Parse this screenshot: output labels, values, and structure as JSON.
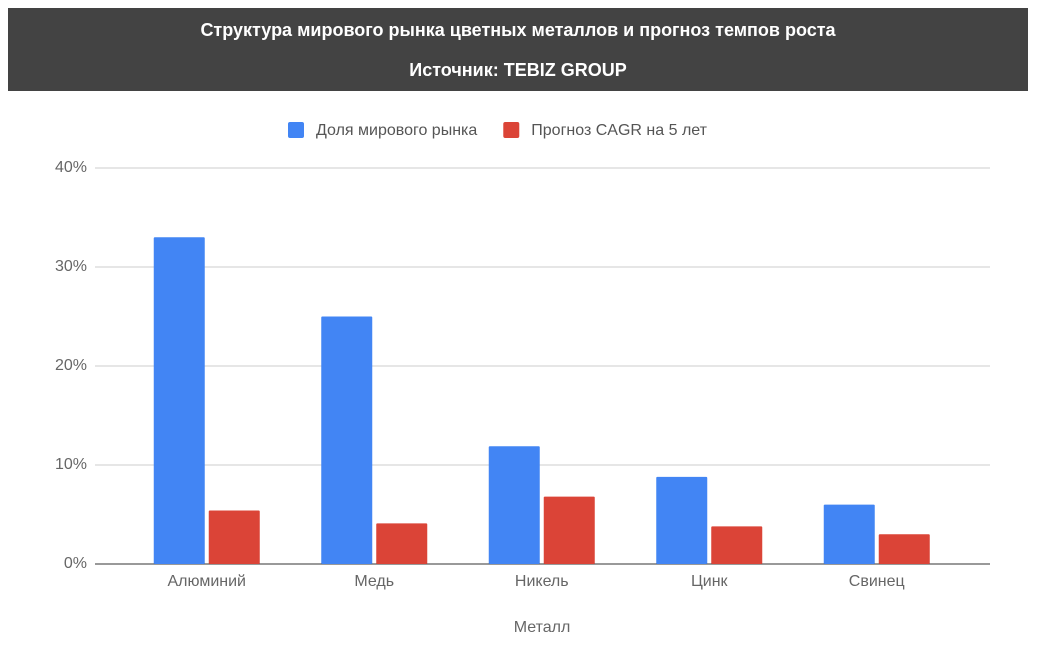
{
  "chart_data": {
    "type": "bar",
    "title": "Структура мирового рынка цветных металлов и прогноз темпов роста",
    "subtitle": "Источник: TEBIZ GROUP",
    "x_label": "Металл",
    "categories": [
      "Алюминий",
      "Медь",
      "Никель",
      "Цинк",
      "Свинец"
    ],
    "series": [
      {
        "name": "Доля мирового рынка",
        "color": "#4285f4",
        "values": [
          33,
          25,
          11.9,
          8.8,
          6.0
        ]
      },
      {
        "name": "Прогноз CAGR на 5 лет",
        "color": "#db4437",
        "values": [
          5.4,
          4.1,
          6.8,
          3.8,
          3.0
        ]
      }
    ],
    "ylim": [
      0,
      40
    ],
    "yticks": [
      {
        "value": 0,
        "label": "0%"
      },
      {
        "value": 10,
        "label": "10%"
      },
      {
        "value": 20,
        "label": "20%"
      },
      {
        "value": 30,
        "label": "30%"
      },
      {
        "value": 40,
        "label": "40%"
      }
    ],
    "grid": true,
    "legend": "top"
  }
}
